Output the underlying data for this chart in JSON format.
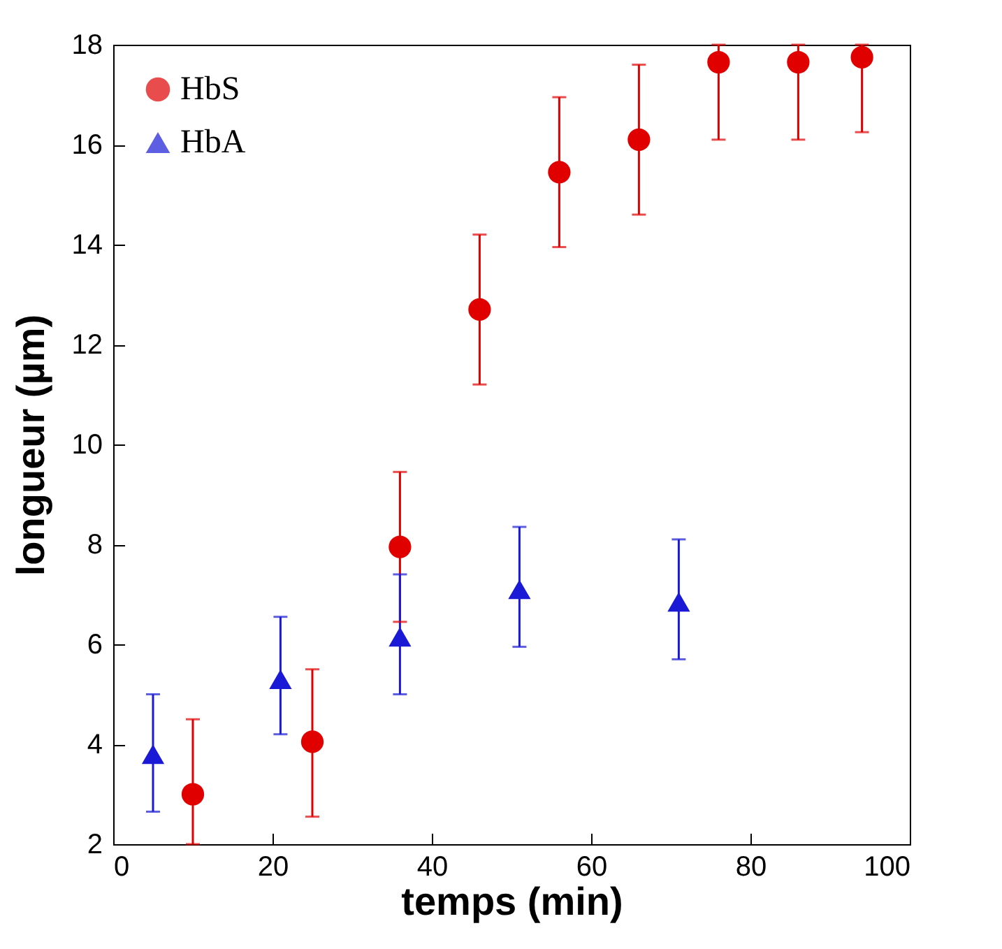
{
  "chart_data": {
    "type": "scatter",
    "xlabel": "temps (min)",
    "ylabel": "longueur (µm)",
    "xlim": [
      0,
      100
    ],
    "ylim": [
      2,
      18
    ],
    "xticks": [
      0,
      20,
      40,
      60,
      80,
      100
    ],
    "yticks": [
      2,
      4,
      6,
      8,
      10,
      12,
      14,
      16,
      18
    ],
    "grid": false,
    "legend": "top left",
    "series": [
      {
        "name": "HbS",
        "color": "#e00000",
        "marker": "circle",
        "x": [
          10,
          25,
          36,
          46,
          56,
          66,
          76,
          86,
          94
        ],
        "values": [
          3.0,
          4.05,
          7.95,
          12.7,
          15.45,
          16.1,
          17.65,
          17.65,
          17.75
        ],
        "errors": [
          [
            2,
            4.5
          ],
          [
            2.55,
            5.5
          ],
          [
            6.45,
            9.45
          ],
          [
            11.2,
            14.2
          ],
          [
            13.95,
            16.95
          ],
          [
            14.6,
            17.6
          ],
          [
            16.1,
            18
          ],
          [
            16.1,
            18
          ],
          [
            16.25,
            18
          ]
        ]
      },
      {
        "name": "HbA",
        "color": "#1a1ad6",
        "marker": "triangle",
        "x": [
          5,
          21,
          36,
          51,
          71
        ],
        "values": [
          3.8,
          5.3,
          6.15,
          7.1,
          6.85
        ],
        "errors": [
          [
            2.65,
            5.0
          ],
          [
            4.2,
            6.55
          ],
          [
            5.0,
            7.4
          ],
          [
            5.95,
            8.35
          ],
          [
            5.7,
            8.1
          ]
        ]
      }
    ]
  }
}
